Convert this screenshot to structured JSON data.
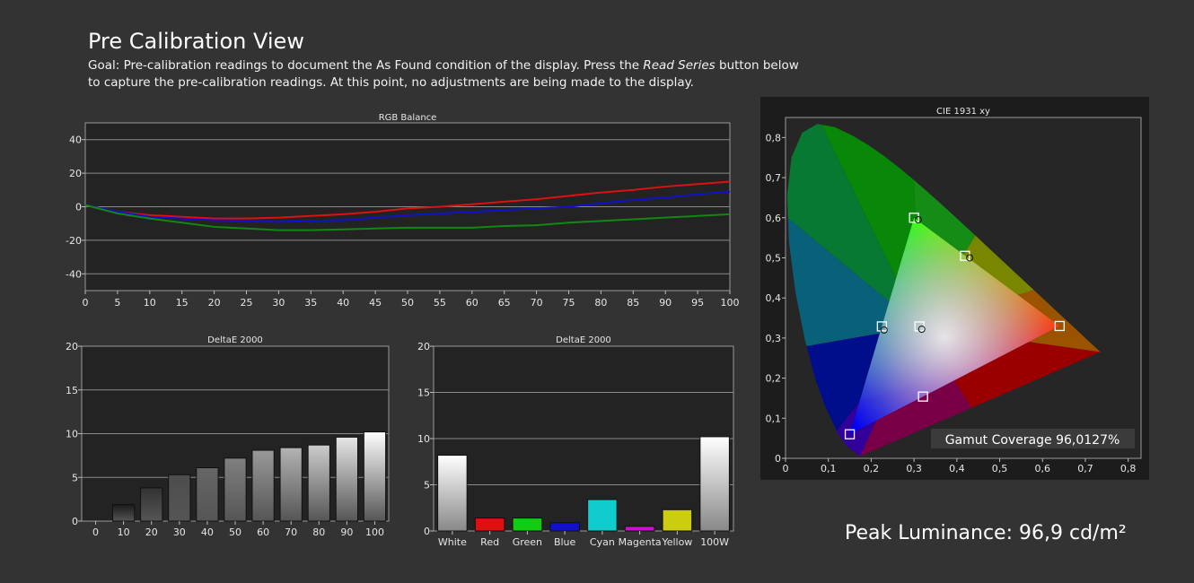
{
  "header": {
    "title": "Pre Calibration View",
    "goal_prefix": "Goal: Pre-calibration readings to document the As Found condition of the display. Press the ",
    "goal_emph": "Read Series",
    "goal_suffix": " button below to capture the pre-calibration readings. At this point, no adjustments are being made to the display."
  },
  "peak_luminance": "Peak Luminance: 96,9 cd/m²",
  "colors": {
    "background": "#333333",
    "plot_bg": "#232323",
    "grid": "#8a8a8a",
    "red": "#dd1111",
    "green": "#118811",
    "blue": "#1111cc"
  },
  "chart_data": [
    {
      "id": "rgb_balance",
      "type": "line",
      "title": "RGB Balance",
      "x": [
        0,
        5,
        10,
        15,
        20,
        25,
        30,
        35,
        40,
        45,
        50,
        55,
        60,
        65,
        70,
        75,
        80,
        85,
        90,
        95,
        100
      ],
      "ylim": [
        -50,
        50
      ],
      "yticks": [
        -40,
        -20,
        0,
        20,
        40
      ],
      "series": [
        {
          "color": "#dd1111",
          "values": [
            1,
            -3,
            -5,
            -6,
            -7,
            -7,
            -6.5,
            -5.5,
            -4.5,
            -3,
            -1,
            0,
            1.5,
            3,
            4.5,
            6.5,
            8.5,
            10,
            12,
            13.5,
            15
          ]
        },
        {
          "color": "#1111cc",
          "values": [
            1,
            -3,
            -6,
            -7,
            -8,
            -8.5,
            -9,
            -8.5,
            -8,
            -6.5,
            -5,
            -4,
            -3,
            -2,
            -1,
            0,
            2,
            4,
            5.5,
            7.5,
            9
          ]
        },
        {
          "color": "#118811",
          "values": [
            1,
            -4,
            -7,
            -9.5,
            -12,
            -13,
            -14,
            -14,
            -13.5,
            -13,
            -12.5,
            -12.5,
            -12.5,
            -11.5,
            -11,
            -9.5,
            -8.5,
            -7.5,
            -6.5,
            -5.5,
            -4.5
          ]
        }
      ]
    },
    {
      "id": "deltae_grayscale",
      "type": "bar",
      "title": "DeltaE 2000",
      "categories": [
        "0",
        "10",
        "20",
        "30",
        "40",
        "50",
        "60",
        "70",
        "80",
        "90",
        "100"
      ],
      "values": [
        0,
        1.9,
        3.8,
        5.3,
        6.1,
        7.2,
        8.1,
        8.4,
        8.7,
        9.6,
        10.2
      ],
      "ylim": [
        0,
        20
      ],
      "yticks": [
        0,
        5,
        10,
        15,
        20
      ]
    },
    {
      "id": "deltae_colors",
      "type": "bar",
      "title": "DeltaE 2000",
      "categories": [
        "White",
        "Red",
        "Green",
        "Blue",
        "Cyan",
        "Magenta",
        "Yellow",
        "100W"
      ],
      "values": [
        8.2,
        1.4,
        1.4,
        0.9,
        3.4,
        0.5,
        2.3,
        10.2
      ],
      "bar_colors": [
        "#ffffff",
        "#dd1111",
        "#11cc11",
        "#1111cc",
        "#11cccc",
        "#cc11cc",
        "#cccc11",
        "#ffffff"
      ],
      "ylim": [
        0,
        20
      ],
      "yticks": [
        0,
        5,
        10,
        15,
        20
      ]
    },
    {
      "id": "cie_1931",
      "type": "scatter",
      "title": "CIE 1931 xy",
      "xlim": [
        0,
        0.83
      ],
      "ylim": [
        0,
        0.85
      ],
      "xticks": [
        "0",
        "0,1",
        "0,2",
        "0,3",
        "0,4",
        "0,5",
        "0,6",
        "0,7",
        "0,8"
      ],
      "yticks": [
        "0",
        "0,1",
        "0,2",
        "0,3",
        "0,4",
        "0,5",
        "0,6",
        "0,7",
        "0,8"
      ],
      "targets": [
        {
          "name": "Red",
          "x": 0.64,
          "y": 0.33
        },
        {
          "name": "Green",
          "x": 0.3,
          "y": 0.6
        },
        {
          "name": "Blue",
          "x": 0.15,
          "y": 0.06
        },
        {
          "name": "White",
          "x": 0.3127,
          "y": 0.329
        },
        {
          "name": "Cyan",
          "x": 0.225,
          "y": 0.329
        },
        {
          "name": "Magenta",
          "x": 0.321,
          "y": 0.154
        },
        {
          "name": "Yellow",
          "x": 0.419,
          "y": 0.505
        }
      ],
      "measured": [
        {
          "name": "Green",
          "x": 0.31,
          "y": 0.595
        },
        {
          "name": "Yellow",
          "x": 0.43,
          "y": 0.5
        },
        {
          "name": "Cyan",
          "x": 0.23,
          "y": 0.32
        },
        {
          "name": "White",
          "x": 0.318,
          "y": 0.322
        }
      ],
      "gamut_coverage": "Gamut Coverage 96,0127%"
    }
  ]
}
